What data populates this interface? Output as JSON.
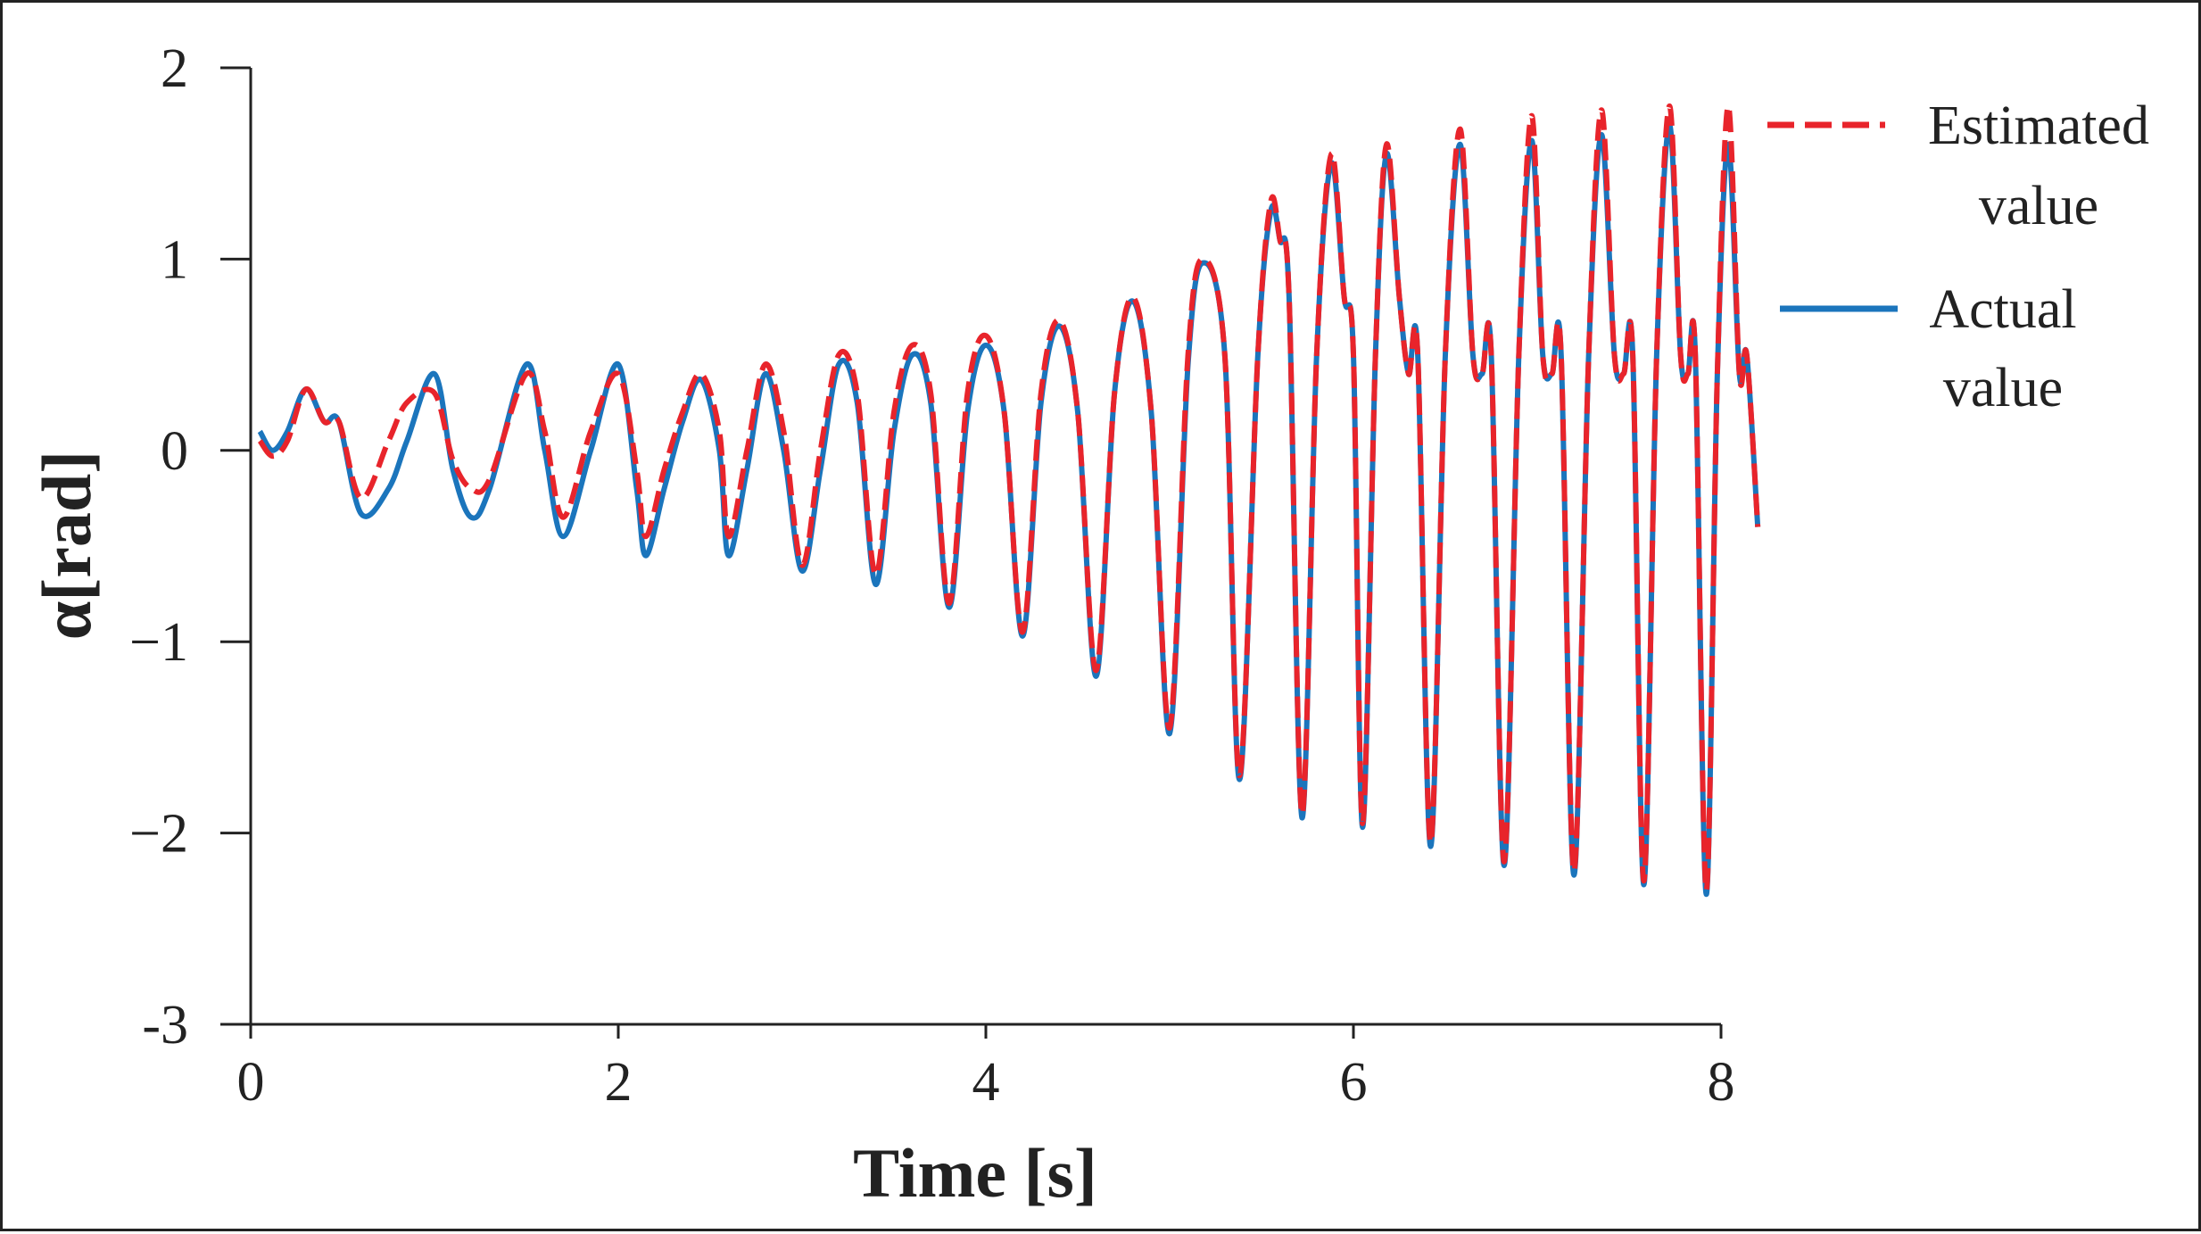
{
  "chart_data": {
    "type": "line",
    "title": "",
    "xlabel": "Time [s]",
    "ylabel": "α[rad]",
    "xlim": [
      0,
      8
    ],
    "ylim": [
      -3,
      2
    ],
    "x_ticks": [
      0,
      2,
      4,
      6,
      8
    ],
    "x_tick_labels": [
      "0",
      "2",
      "4",
      "6",
      "8"
    ],
    "y_ticks": [
      2,
      1,
      0,
      -1,
      -2,
      -3
    ],
    "y_tick_labels": [
      "2",
      "1",
      "0",
      "−1",
      "−2",
      "-3"
    ],
    "grid": false,
    "legend_position": "top-right, outside plot",
    "legend": [
      {
        "line1": "Estimated",
        "line2": "value"
      },
      {
        "line1": "Actual",
        "line2": "value"
      }
    ],
    "series": [
      {
        "name": "Estimated value",
        "color": "#e8242b",
        "style": "dashed",
        "points": [
          [
            0.05,
            0.05
          ],
          [
            0.12,
            -0.03
          ],
          [
            0.2,
            0.05
          ],
          [
            0.3,
            0.32
          ],
          [
            0.4,
            0.15
          ],
          [
            0.48,
            0.15
          ],
          [
            0.6,
            -0.25
          ],
          [
            0.75,
            0.05
          ],
          [
            0.85,
            0.25
          ],
          [
            1.0,
            0.3
          ],
          [
            1.1,
            -0.05
          ],
          [
            1.2,
            -0.2
          ],
          [
            1.3,
            -0.15
          ],
          [
            1.5,
            0.4
          ],
          [
            1.6,
            0.1
          ],
          [
            1.7,
            -0.35
          ],
          [
            1.85,
            0.1
          ],
          [
            2.0,
            0.4
          ],
          [
            2.1,
            -0.1
          ],
          [
            2.15,
            -0.45
          ],
          [
            2.25,
            -0.1
          ],
          [
            2.35,
            0.2
          ],
          [
            2.45,
            0.4
          ],
          [
            2.55,
            0.1
          ],
          [
            2.6,
            -0.45
          ],
          [
            2.7,
            0.0
          ],
          [
            2.8,
            0.45
          ],
          [
            2.9,
            0.1
          ],
          [
            3.0,
            -0.6
          ],
          [
            3.1,
            0.0
          ],
          [
            3.2,
            0.5
          ],
          [
            3.3,
            0.3
          ],
          [
            3.4,
            -0.65
          ],
          [
            3.5,
            0.2
          ],
          [
            3.6,
            0.55
          ],
          [
            3.7,
            0.3
          ],
          [
            3.8,
            -0.8
          ],
          [
            3.9,
            0.3
          ],
          [
            4.0,
            0.6
          ],
          [
            4.1,
            0.2
          ],
          [
            4.2,
            -0.95
          ],
          [
            4.3,
            0.3
          ],
          [
            4.4,
            0.68
          ],
          [
            4.5,
            0.2
          ],
          [
            4.6,
            -1.15
          ],
          [
            4.7,
            0.3
          ],
          [
            4.8,
            0.8
          ],
          [
            4.9,
            0.2
          ],
          [
            5.0,
            -1.45
          ],
          [
            5.1,
            0.5
          ],
          [
            5.18,
            1.0
          ],
          [
            5.3,
            0.5
          ],
          [
            5.38,
            -1.7
          ],
          [
            5.48,
            0.5
          ],
          [
            5.55,
            1.3
          ],
          [
            5.6,
            1.1
          ],
          [
            5.65,
            0.8
          ],
          [
            5.72,
            -1.9
          ],
          [
            5.8,
            0.5
          ],
          [
            5.88,
            1.55
          ],
          [
            5.95,
            0.8
          ],
          [
            6.0,
            0.5
          ],
          [
            6.05,
            -1.95
          ],
          [
            6.12,
            0.5
          ],
          [
            6.18,
            1.6
          ],
          [
            6.25,
            0.8
          ],
          [
            6.3,
            0.4
          ],
          [
            6.35,
            0.5
          ],
          [
            6.42,
            -2.05
          ],
          [
            6.5,
            0.5
          ],
          [
            6.58,
            1.68
          ],
          [
            6.65,
            0.5
          ],
          [
            6.7,
            0.4
          ],
          [
            6.75,
            0.5
          ],
          [
            6.82,
            -2.15
          ],
          [
            6.9,
            0.5
          ],
          [
            6.97,
            1.75
          ],
          [
            7.03,
            0.5
          ],
          [
            7.08,
            0.4
          ],
          [
            7.13,
            0.5
          ],
          [
            7.2,
            -2.2
          ],
          [
            7.28,
            0.5
          ],
          [
            7.35,
            1.78
          ],
          [
            7.42,
            0.5
          ],
          [
            7.47,
            0.4
          ],
          [
            7.52,
            0.5
          ],
          [
            7.58,
            -2.25
          ],
          [
            7.65,
            0.5
          ],
          [
            7.72,
            1.8
          ],
          [
            7.78,
            0.5
          ],
          [
            7.82,
            0.4
          ],
          [
            7.86,
            0.5
          ],
          [
            7.92,
            -2.3
          ],
          [
            7.98,
            0.4
          ],
          [
            8.04,
            1.8
          ],
          [
            8.1,
            0.4
          ],
          [
            8.14,
            0.5
          ],
          [
            8.2,
            -0.4
          ]
        ]
      },
      {
        "name": "Actual value",
        "color": "#1b75bc",
        "style": "solid",
        "points": [
          [
            0.05,
            0.1
          ],
          [
            0.12,
            0.0
          ],
          [
            0.2,
            0.1
          ],
          [
            0.3,
            0.32
          ],
          [
            0.4,
            0.15
          ],
          [
            0.48,
            0.15
          ],
          [
            0.6,
            -0.33
          ],
          [
            0.75,
            -0.2
          ],
          [
            0.85,
            0.05
          ],
          [
            1.0,
            0.4
          ],
          [
            1.1,
            -0.1
          ],
          [
            1.2,
            -0.35
          ],
          [
            1.3,
            -0.2
          ],
          [
            1.5,
            0.45
          ],
          [
            1.6,
            0.0
          ],
          [
            1.7,
            -0.45
          ],
          [
            1.85,
            0.0
          ],
          [
            2.0,
            0.45
          ],
          [
            2.1,
            -0.2
          ],
          [
            2.15,
            -0.55
          ],
          [
            2.25,
            -0.2
          ],
          [
            2.35,
            0.15
          ],
          [
            2.45,
            0.37
          ],
          [
            2.55,
            0.0
          ],
          [
            2.6,
            -0.55
          ],
          [
            2.7,
            -0.1
          ],
          [
            2.8,
            0.4
          ],
          [
            2.9,
            0.0
          ],
          [
            3.0,
            -0.63
          ],
          [
            3.1,
            -0.1
          ],
          [
            3.2,
            0.45
          ],
          [
            3.3,
            0.25
          ],
          [
            3.4,
            -0.7
          ],
          [
            3.5,
            0.1
          ],
          [
            3.6,
            0.5
          ],
          [
            3.7,
            0.25
          ],
          [
            3.8,
            -0.82
          ],
          [
            3.9,
            0.2
          ],
          [
            4.0,
            0.55
          ],
          [
            4.1,
            0.2
          ],
          [
            4.2,
            -0.97
          ],
          [
            4.3,
            0.25
          ],
          [
            4.4,
            0.65
          ],
          [
            4.5,
            0.2
          ],
          [
            4.6,
            -1.18
          ],
          [
            4.7,
            0.3
          ],
          [
            4.8,
            0.78
          ],
          [
            4.9,
            0.2
          ],
          [
            5.0,
            -1.48
          ],
          [
            5.1,
            0.45
          ],
          [
            5.18,
            0.98
          ],
          [
            5.3,
            0.5
          ],
          [
            5.38,
            -1.72
          ],
          [
            5.48,
            0.5
          ],
          [
            5.55,
            1.25
          ],
          [
            5.6,
            1.1
          ],
          [
            5.65,
            0.8
          ],
          [
            5.72,
            -1.92
          ],
          [
            5.8,
            0.5
          ],
          [
            5.88,
            1.5
          ],
          [
            5.95,
            0.8
          ],
          [
            6.0,
            0.5
          ],
          [
            6.05,
            -1.97
          ],
          [
            6.12,
            0.5
          ],
          [
            6.18,
            1.55
          ],
          [
            6.25,
            0.8
          ],
          [
            6.3,
            0.4
          ],
          [
            6.35,
            0.5
          ],
          [
            6.42,
            -2.07
          ],
          [
            6.5,
            0.5
          ],
          [
            6.58,
            1.6
          ],
          [
            6.65,
            0.5
          ],
          [
            6.7,
            0.4
          ],
          [
            6.75,
            0.5
          ],
          [
            6.82,
            -2.17
          ],
          [
            6.9,
            0.5
          ],
          [
            6.97,
            1.62
          ],
          [
            7.03,
            0.5
          ],
          [
            7.08,
            0.4
          ],
          [
            7.13,
            0.5
          ],
          [
            7.2,
            -2.22
          ],
          [
            7.28,
            0.5
          ],
          [
            7.35,
            1.65
          ],
          [
            7.42,
            0.5
          ],
          [
            7.47,
            0.4
          ],
          [
            7.52,
            0.5
          ],
          [
            7.58,
            -2.27
          ],
          [
            7.65,
            0.5
          ],
          [
            7.72,
            1.7
          ],
          [
            7.78,
            0.5
          ],
          [
            7.82,
            0.4
          ],
          [
            7.86,
            0.5
          ],
          [
            7.92,
            -2.32
          ],
          [
            7.98,
            0.4
          ],
          [
            8.04,
            1.6
          ],
          [
            8.1,
            0.4
          ],
          [
            8.14,
            0.5
          ],
          [
            8.2,
            -0.4
          ]
        ]
      }
    ]
  }
}
